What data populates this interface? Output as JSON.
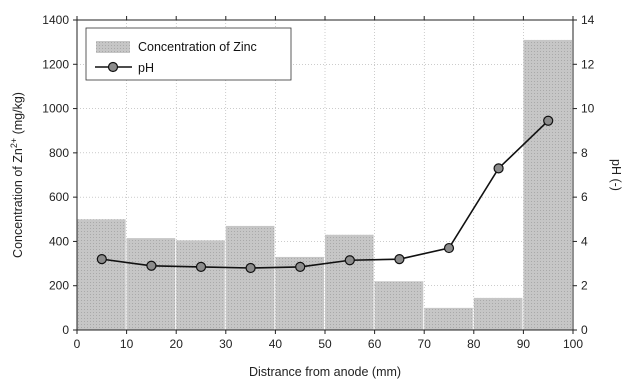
{
  "chart_data": {
    "type": "bar",
    "x": [
      5,
      15,
      25,
      35,
      45,
      55,
      65,
      75,
      85,
      95
    ],
    "bar_width": 10,
    "series": [
      {
        "name": "Concentration of Zinc",
        "type": "bar",
        "axis": "left",
        "color": "#c4c4c4",
        "values": [
          500,
          415,
          405,
          470,
          330,
          430,
          220,
          100,
          145,
          1310
        ]
      },
      {
        "name": "pH",
        "type": "line",
        "axis": "right",
        "color": "#111111",
        "marker_color": "#8c8c8c",
        "values": [
          3.2,
          2.9,
          2.85,
          2.8,
          2.85,
          3.15,
          3.2,
          3.7,
          7.3,
          9.45
        ]
      }
    ],
    "xlabel": "Distrance from anode (mm)",
    "ylabel_left": {
      "main": "Concentration of Zn",
      "sup": "2+",
      "tail": " (mg/kg)"
    },
    "ylabel_right": "pH (-)",
    "xlim": [
      0,
      100
    ],
    "ylim_left": [
      0,
      1400
    ],
    "ylim_right": [
      0,
      14
    ],
    "xticks": [
      "0",
      "10",
      "20",
      "30",
      "40",
      "50",
      "60",
      "70",
      "80",
      "90",
      "100"
    ],
    "yticks_left": [
      "0",
      "200",
      "400",
      "600",
      "800",
      "1000",
      "1200",
      "1400"
    ],
    "yticks_right": [
      "0",
      "2",
      "4",
      "6",
      "8",
      "10",
      "12",
      "14"
    ],
    "grid": true,
    "legend_position": "top-left"
  }
}
